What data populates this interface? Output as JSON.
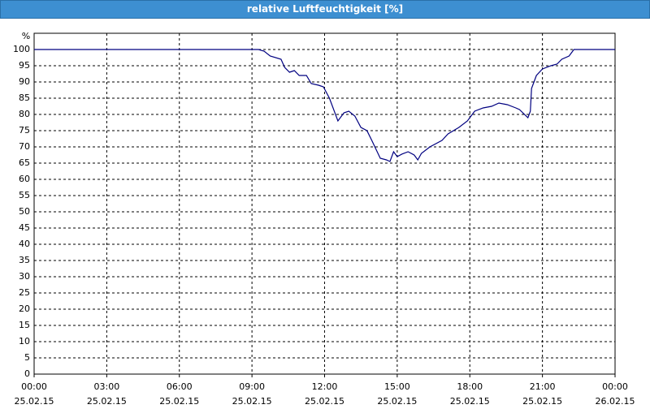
{
  "chart_data": {
    "type": "line",
    "title": "relative Luftfeuchtigkeit [%]",
    "y_label": "%",
    "color": "#000080",
    "grid": true,
    "x": [
      0,
      9.27,
      9.5,
      9.75,
      10.2,
      10.35,
      10.55,
      10.75,
      10.95,
      11.25,
      11.45,
      11.75,
      11.95,
      12.2,
      12.55,
      12.8,
      13.0,
      13.25,
      13.5,
      13.75,
      13.95,
      14.3,
      14.55,
      14.7,
      14.85,
      15.0,
      15.2,
      15.45,
      15.7,
      15.85,
      16.0,
      16.35,
      16.85,
      17.1,
      17.55,
      17.9,
      18.2,
      18.55,
      18.9,
      19.2,
      19.55,
      19.9,
      20.05,
      20.4,
      20.5,
      20.55,
      20.75,
      21.0,
      21.35,
      21.6,
      21.8,
      22.1,
      22.3,
      24
    ],
    "values": [
      100,
      100,
      99.5,
      98,
      97,
      94.5,
      93,
      93.5,
      92,
      92,
      89.5,
      89,
      88.5,
      85,
      78,
      80.5,
      81,
      79.5,
      76,
      75,
      72,
      66.5,
      66,
      65.5,
      68.5,
      67,
      67.8,
      68.5,
      67.5,
      66,
      68,
      70,
      72,
      74,
      76,
      78,
      81,
      82,
      82.5,
      83.5,
      83,
      82,
      81.5,
      79,
      81,
      88,
      92,
      94,
      95,
      95.5,
      97,
      98,
      100,
      100
    ],
    "xlim": [
      0,
      24
    ],
    "xticks": [
      {
        "value": 0,
        "label": "00:00\n25.02.15"
      },
      {
        "value": 3,
        "label": "03:00\n25.02.15"
      },
      {
        "value": 6,
        "label": "06:00\n25.02.15"
      },
      {
        "value": 9,
        "label": "09:00\n25.02.15"
      },
      {
        "value": 12,
        "label": "12:00\n25.02.15"
      },
      {
        "value": 15,
        "label": "15:00\n25.02.15"
      },
      {
        "value": 18,
        "label": "18:00\n25.02.15"
      },
      {
        "value": 21,
        "label": "21:00\n25.02.15"
      },
      {
        "value": 24,
        "label": "00:00\n26.02.15"
      }
    ],
    "ylim": [
      0,
      105
    ],
    "yticks": [
      0,
      5,
      10,
      15,
      20,
      25,
      30,
      35,
      40,
      45,
      50,
      55,
      60,
      65,
      70,
      75,
      80,
      85,
      90,
      95,
      100
    ]
  }
}
